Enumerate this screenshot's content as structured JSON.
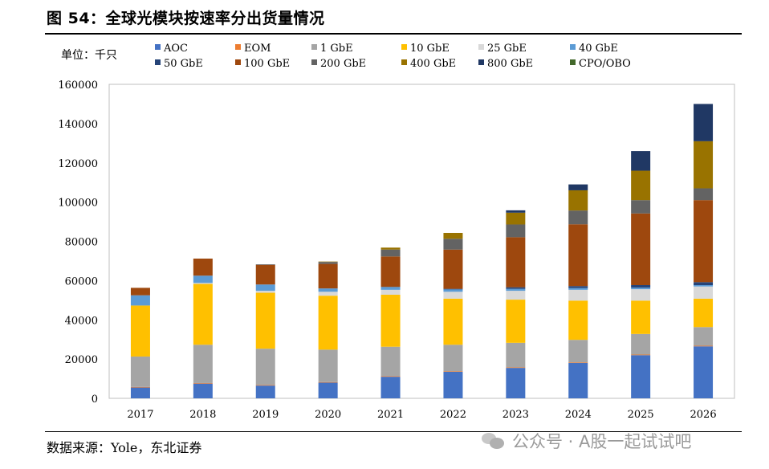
{
  "header": {
    "title": "图 54：全球光模块按速率分出货量情况"
  },
  "footer": {
    "source": "数据来源：Yole，东北证券",
    "watermark": "公众号 · A股一起试试吧"
  },
  "chart_data": {
    "type": "bar",
    "stacked": true,
    "unit_label": "单位：千只",
    "categories": [
      "2017",
      "2018",
      "2019",
      "2020",
      "2021",
      "2022",
      "2023",
      "2024",
      "2025",
      "2026"
    ],
    "ylim": [
      0,
      160000
    ],
    "yticks": [
      0,
      20000,
      40000,
      60000,
      80000,
      100000,
      120000,
      140000,
      160000
    ],
    "legend_position": "top",
    "series": [
      {
        "name": "AOC",
        "color": "#4472C4",
        "values": [
          5500,
          7500,
          6500,
          8000,
          11000,
          13500,
          15500,
          18000,
          22000,
          26500
        ]
      },
      {
        "name": "EOM",
        "color": "#ED7D31",
        "values": [
          300,
          300,
          300,
          300,
          300,
          300,
          300,
          300,
          300,
          300
        ]
      },
      {
        "name": "1 GbE",
        "color": "#A5A5A5",
        "values": [
          15500,
          19500,
          18500,
          16500,
          15000,
          13500,
          12500,
          11500,
          10500,
          9500
        ]
      },
      {
        "name": "10 GbE",
        "color": "#FFC000",
        "values": [
          26000,
          31000,
          28500,
          27500,
          26500,
          23500,
          22000,
          20000,
          17000,
          14500
        ]
      },
      {
        "name": "25 GbE",
        "color": "#D9D9D9",
        "values": [
          0,
          500,
          1000,
          2000,
          2500,
          3500,
          4500,
          5500,
          5800,
          6200
        ]
      },
      {
        "name": "40 GbE",
        "color": "#5B9BD5",
        "values": [
          5200,
          3700,
          3200,
          1700,
          1400,
          1200,
          1000,
          900,
          800,
          700
        ]
      },
      {
        "name": "50 GbE",
        "color": "#264478",
        "values": [
          0,
          0,
          0,
          0,
          100,
          300,
          800,
          1000,
          1300,
          1500
        ]
      },
      {
        "name": "100 GbE",
        "color": "#9E480E",
        "values": [
          3800,
          8700,
          10000,
          12500,
          15500,
          20000,
          25500,
          31500,
          36500,
          41800
        ]
      },
      {
        "name": "200 GbE",
        "color": "#636363",
        "values": [
          0,
          0,
          300,
          1000,
          3500,
          5500,
          6500,
          7000,
          6800,
          6000
        ]
      },
      {
        "name": "400 GbE",
        "color": "#997300",
        "values": [
          0,
          0,
          0,
          200,
          1000,
          3000,
          6000,
          10300,
          15000,
          24000
        ]
      },
      {
        "name": "800 GbE",
        "color": "#203864",
        "values": [
          0,
          0,
          0,
          0,
          0,
          0,
          1200,
          3000,
          10000,
          19000
        ]
      },
      {
        "name": "CPO/OBO",
        "color": "#43682B",
        "values": [
          0,
          0,
          0,
          0,
          0,
          0,
          0,
          0,
          0,
          0
        ]
      }
    ]
  }
}
